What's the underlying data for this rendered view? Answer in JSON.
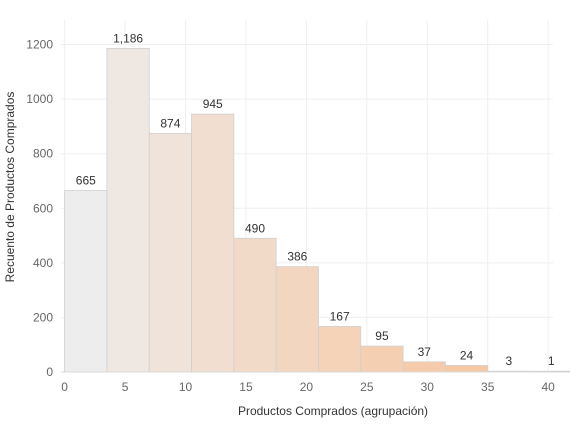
{
  "chart_data": {
    "type": "bar",
    "xlabel": "Productos Comprados (agrupación)",
    "ylabel": "Recuento de Productos Comprados",
    "bin_width": 3.5,
    "x_ticks": [
      0,
      5,
      10,
      15,
      20,
      25,
      30,
      35,
      40
    ],
    "y_ticks": [
      0,
      200,
      400,
      600,
      800,
      1000,
      1200
    ],
    "xlim": [
      -0.3,
      40.4
    ],
    "ylim": [
      0,
      1290
    ],
    "bins_start": [
      0,
      3.5,
      7,
      10.5,
      14,
      17.5,
      21,
      24.5,
      28,
      31.5,
      35,
      38.5
    ],
    "values": [
      665,
      1186,
      874,
      945,
      490,
      386,
      167,
      95,
      37,
      24,
      3,
      1
    ],
    "data_labels": [
      "665",
      "1,186",
      "874",
      "945",
      "490",
      "386",
      "167",
      "95",
      "37",
      "24",
      "3",
      "1"
    ],
    "grid": true,
    "colors": {
      "low": "#ededed",
      "high": "#f9c196",
      "bar_border": "#d0d0d0",
      "grid": "#efefef"
    }
  }
}
